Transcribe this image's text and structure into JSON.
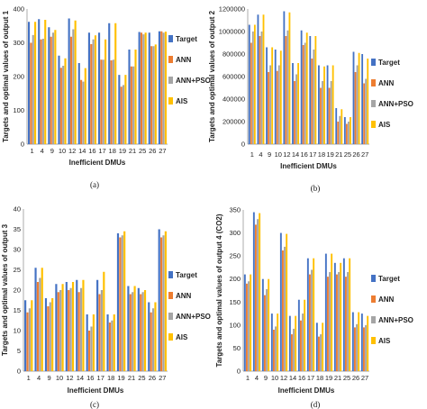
{
  "colors": {
    "Target": "#4472c4",
    "ANN": "#ed7d31",
    "ANN+PSO": "#a5a5a5",
    "AIS": "#ffc000"
  },
  "chart_data": [
    {
      "type": "bar",
      "panel": "(a)",
      "categories": [
        "1",
        "4",
        "9",
        "10",
        "12",
        "14",
        "16",
        "17",
        "18",
        "19",
        "21",
        "25",
        "26",
        "27"
      ],
      "series": [
        {
          "name": "Target",
          "values": [
            362,
            370,
            346,
            262,
            372,
            240,
            330,
            330,
            358,
            205,
            280,
            332,
            330,
            334
          ]
        },
        {
          "name": "ANN",
          "values": [
            300,
            310,
            318,
            226,
            318,
            190,
            296,
            250,
            248,
            170,
            230,
            330,
            290,
            334
          ]
        },
        {
          "name": "ANN+PSO",
          "values": [
            323,
            312,
            330,
            232,
            340,
            185,
            310,
            250,
            250,
            175,
            230,
            325,
            290,
            330
          ]
        },
        {
          "name": "AIS",
          "values": [
            362,
            368,
            338,
            254,
            366,
            225,
            322,
            310,
            358,
            205,
            280,
            330,
            295,
            333
          ]
        }
      ],
      "xlabel": "Inefficient DMUs",
      "ylabel": "Targets and optimal values of output 1",
      "yticks": [
        "0",
        "100",
        "200",
        "300",
        "400"
      ],
      "ylim": [
        0,
        400
      ],
      "legend": "right"
    },
    {
      "type": "bar",
      "panel": "(b)",
      "categories": [
        "1",
        "4",
        "9",
        "10",
        "12",
        "14",
        "16",
        "17",
        "18",
        "19",
        "21",
        "25",
        "26",
        "27"
      ],
      "series": [
        {
          "name": "Target",
          "values": [
            1060000,
            1150000,
            860000,
            840000,
            1180000,
            720000,
            1010000,
            960000,
            700000,
            700000,
            320000,
            240000,
            820000,
            800000
          ]
        },
        {
          "name": "ANN",
          "values": [
            900000,
            960000,
            640000,
            650000,
            960000,
            560000,
            880000,
            760000,
            500000,
            500000,
            200000,
            180000,
            640000,
            540000
          ]
        },
        {
          "name": "ANN+PSO",
          "values": [
            1000000,
            1000000,
            700000,
            700000,
            1010000,
            620000,
            900000,
            840000,
            560000,
            560000,
            250000,
            200000,
            700000,
            580000
          ]
        },
        {
          "name": "AIS",
          "values": [
            1060000,
            1150000,
            860000,
            830000,
            1170000,
            720000,
            990000,
            960000,
            690000,
            700000,
            310000,
            240000,
            810000,
            760000
          ]
        }
      ],
      "xlabel": "Inefficient DMUs",
      "ylabel": "Targets and optimal values of output 2",
      "yticks": [
        "0",
        "200000",
        "400000",
        "600000",
        "800000",
        "1000000",
        "1200000"
      ],
      "ylim": [
        0,
        1200000
      ],
      "legend": "right"
    },
    {
      "type": "bar",
      "panel": "(c)",
      "categories": [
        "1",
        "4",
        "9",
        "10",
        "12",
        "14",
        "16",
        "17",
        "18",
        "19",
        "21",
        "25",
        "26",
        "27"
      ],
      "series": [
        {
          "name": "Target",
          "values": [
            17.5,
            25.5,
            18,
            21.5,
            22,
            22.5,
            14,
            22.5,
            14,
            34,
            21,
            20.5,
            17,
            35
          ]
        },
        {
          "name": "ANN",
          "values": [
            14.5,
            22,
            16,
            19.5,
            20,
            19.5,
            10,
            19,
            12,
            33,
            19,
            19,
            14.5,
            33
          ]
        },
        {
          "name": "ANN+PSO",
          "values": [
            15.5,
            23,
            17,
            20,
            20.5,
            20.5,
            11,
            20,
            12.5,
            33.5,
            19.5,
            19.5,
            15.5,
            33.5
          ]
        },
        {
          "name": "AIS",
          "values": [
            17.5,
            25.5,
            18,
            21.5,
            22,
            22.5,
            14,
            24.5,
            14,
            34.5,
            21,
            20,
            17,
            34.5
          ]
        }
      ],
      "xlabel": "Inefficient DMUs",
      "ylabel": "Targets and optimal values of output 3",
      "yticks": [
        "0",
        "5",
        "10",
        "15",
        "20",
        "25",
        "30",
        "35",
        "40"
      ],
      "ylim": [
        0,
        40
      ],
      "legend": "right"
    },
    {
      "type": "bar",
      "panel": "(d)",
      "categories": [
        "1",
        "4",
        "9",
        "10",
        "12",
        "14",
        "16",
        "17",
        "18",
        "19",
        "21",
        "25",
        "26",
        "27"
      ],
      "series": [
        {
          "name": "Target",
          "values": [
            210,
            345,
            200,
            125,
            300,
            120,
            155,
            245,
            105,
            255,
            235,
            245,
            128,
            125
          ]
        },
        {
          "name": "ANN",
          "values": [
            190,
            318,
            165,
            90,
            262,
            80,
            110,
            210,
            75,
            205,
            210,
            205,
            95,
            95
          ]
        },
        {
          "name": "ANN+PSO",
          "values": [
            195,
            330,
            178,
            97,
            270,
            92,
            125,
            220,
            80,
            215,
            215,
            215,
            102,
            100
          ]
        },
        {
          "name": "AIS",
          "values": [
            210,
            343,
            200,
            125,
            298,
            120,
            155,
            245,
            105,
            255,
            235,
            245,
            128,
            120
          ]
        }
      ],
      "xlabel": "Inefficient DMUs",
      "ylabel": "Targets and optimal values of output 4 (CO2)",
      "yticks": [
        "0",
        "50",
        "100",
        "150",
        "200",
        "250",
        "300",
        "350"
      ],
      "ylim": [
        0,
        350
      ],
      "legend": "right"
    }
  ]
}
